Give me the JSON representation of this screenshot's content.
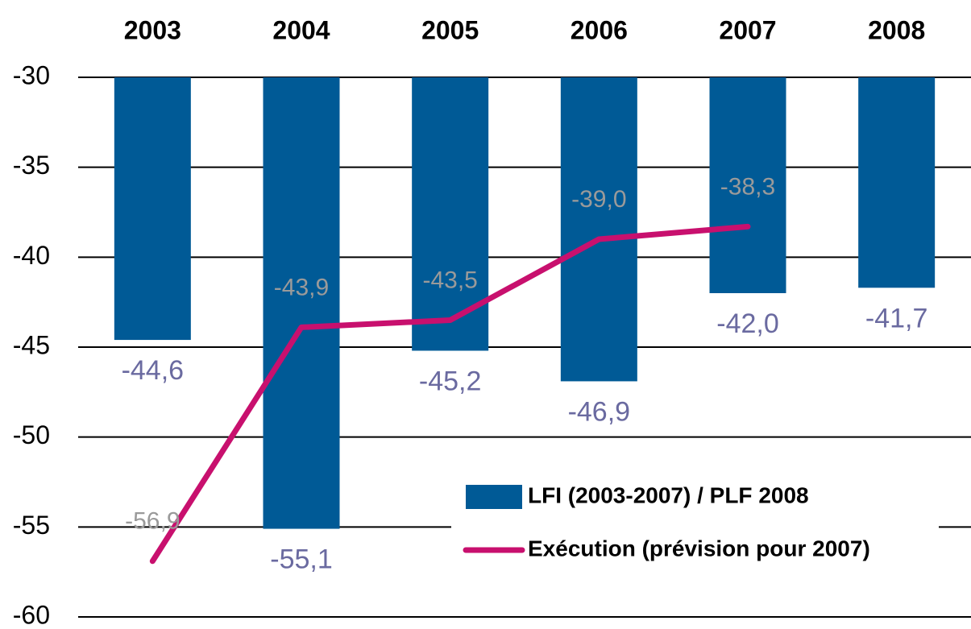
{
  "chart_data": {
    "type": "bar",
    "categories": [
      "2003",
      "2004",
      "2005",
      "2006",
      "2007",
      "2008"
    ],
    "series": [
      {
        "name": "LFI (2003-2007) / PLF 2008",
        "type": "bar",
        "color": "#005a96",
        "values": [
          -44.6,
          -55.1,
          -45.2,
          -46.9,
          -42.0,
          -41.7
        ],
        "value_labels": [
          "-44,6",
          "-55,1",
          "-45,2",
          "-46,9",
          "-42,0",
          "-41,7"
        ]
      },
      {
        "name": "Exécution (prévision pour 2007)",
        "type": "line",
        "color": "#c8106e",
        "values": [
          -56.9,
          -43.9,
          -43.5,
          -39.0,
          -38.3,
          null
        ],
        "value_labels": [
          "-56,9",
          "-43,9",
          "-43,5",
          "-39,0",
          "-38,3",
          null
        ]
      }
    ],
    "ylim": [
      -60,
      -30
    ],
    "yticks": [
      -30,
      -35,
      -40,
      -45,
      -50,
      -55,
      -60
    ],
    "grid": true,
    "legend": "lower right"
  }
}
